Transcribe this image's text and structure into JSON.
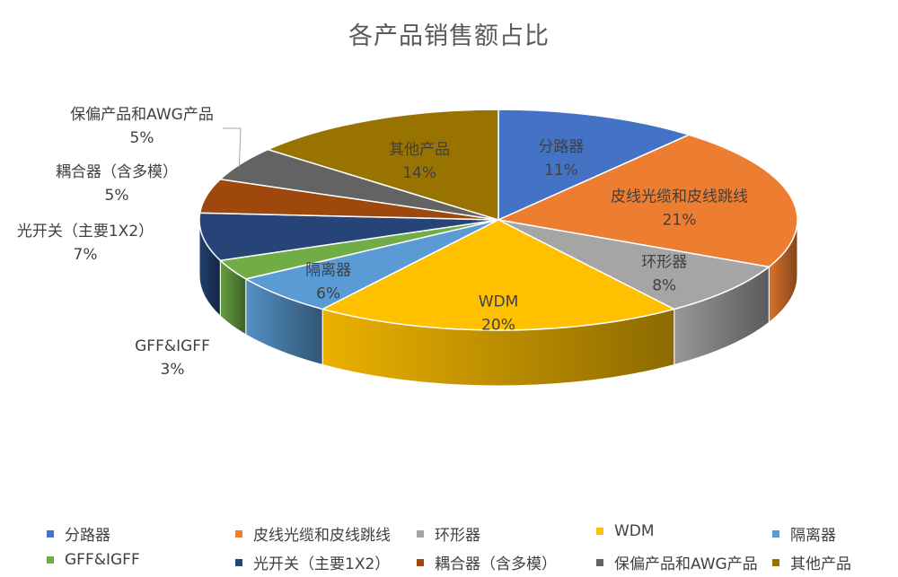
{
  "chart_data": {
    "type": "pie",
    "title": "各产品销售额占比",
    "categories": [
      "分路器",
      "皮线光缆和皮线跳线",
      "环形器",
      "WDM",
      "隔离器",
      "GFF&IGFF",
      "光开关（主要1X2）",
      "耦合器（含多模）",
      "保偏产品和AWG产品",
      "其他产品"
    ],
    "values": [
      11,
      21,
      8,
      20,
      6,
      3,
      7,
      5,
      5,
      14
    ],
    "labels": [
      "11%",
      "21%",
      "8%",
      "20%",
      "6%",
      "3%",
      "7%",
      "5%",
      "5%",
      "14%"
    ],
    "colors": [
      "#4472C4",
      "#ED7D31",
      "#A5A5A5",
      "#FFC000",
      "#5B9BD5",
      "#70AD47",
      "#264478",
      "#9E480E",
      "#636363",
      "#997300"
    ],
    "unit": "%",
    "style": "3d",
    "legend_position": "bottom"
  }
}
